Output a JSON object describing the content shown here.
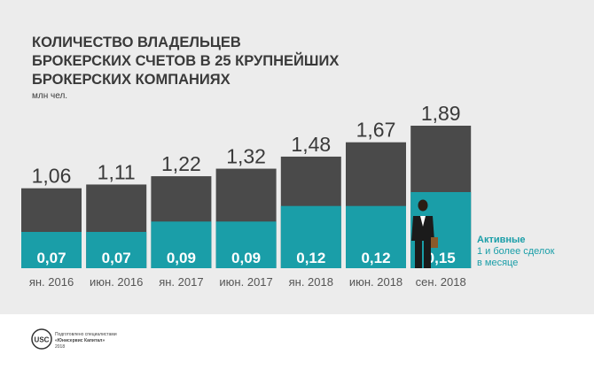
{
  "chart_data": {
    "type": "bar",
    "title_lines": [
      "КОЛИЧЕСТВО ВЛАДЕЛЬЦЕВ",
      "БРОКЕРСКИХ СЧЕТОВ В 25 КРУПНЕЙШИХ",
      "БРОКЕРСКИХ КОМПАНИЯХ"
    ],
    "unit": "млн чел.",
    "categories": [
      "ян. 2016",
      "июн. 2016",
      "ян. 2017",
      "июн. 2017",
      "ян. 2018",
      "июн. 2018",
      "сен. 2018"
    ],
    "series": [
      {
        "name": "",
        "values": [
          1.06,
          1.11,
          1.22,
          1.32,
          1.48,
          1.67,
          1.89
        ],
        "labels": [
          "1,06",
          "1,11",
          "1,22",
          "1,32",
          "1,48",
          "1,67",
          "1,89"
        ]
      },
      {
        "name": "Активные",
        "values": [
          0.07,
          0.07,
          0.09,
          0.09,
          0.12,
          0.12,
          0.15
        ],
        "labels": [
          "0,07",
          "0,07",
          "0,09",
          "0,09",
          "0,12",
          "0,12",
          "0,15"
        ]
      }
    ],
    "ylim": [
      0,
      1.89
    ],
    "legend": {
      "title": "Активные",
      "lines": [
        "1 и более сделок",
        "в месяце"
      ],
      "position": "right"
    },
    "colors": {
      "total": "#4a4a4a",
      "active": "#1a9ea8",
      "background_band": "#ececec",
      "title": "#3a3a3a"
    }
  },
  "footer": {
    "logo_text": "USC",
    "lines": [
      "Подготовлено специалистами",
      "«Юнисервис Капитал»",
      "2018"
    ]
  }
}
